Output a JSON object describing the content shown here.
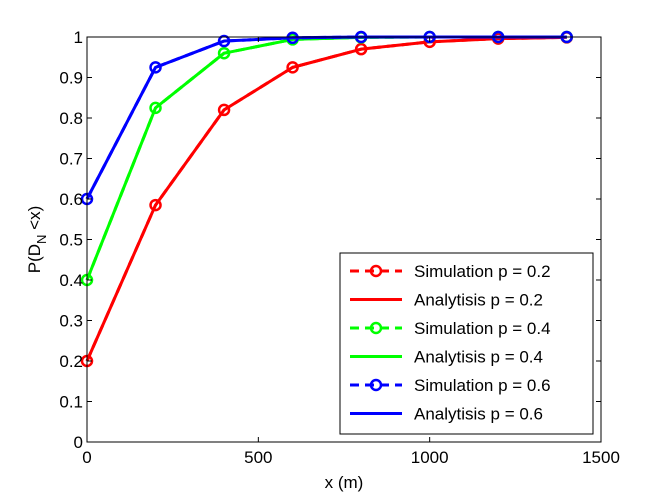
{
  "chart_data": {
    "type": "line",
    "xlabel": "x (m)",
    "ylabel": {
      "main": "P(D",
      "sub": "N",
      "tail": " <x)"
    },
    "xlim": [
      0,
      1500
    ],
    "ylim": [
      0,
      1
    ],
    "x_ticks": [
      0,
      500,
      1000,
      1500
    ],
    "x_tick_labels": [
      "0",
      "500",
      "1000",
      "1500"
    ],
    "y_ticks": [
      0,
      0.1,
      0.2,
      0.3,
      0.4,
      0.5,
      0.6,
      0.7,
      0.8,
      0.9,
      1
    ],
    "y_tick_labels": [
      "0",
      "0.1",
      "0.2",
      "0.3",
      "0.4",
      "0.5",
      "0.6",
      "0.7",
      "0.8",
      "0.9",
      "1"
    ],
    "grid": false,
    "legend_position": "bottom-right",
    "x": [
      0,
      200,
      400,
      600,
      800,
      1000,
      1200,
      1400
    ],
    "series": [
      {
        "name": "Simulation p = 0.2",
        "kind": "simulation",
        "color": "#ff0000",
        "values": [
          0.2,
          0.585,
          0.82,
          0.925,
          0.97,
          0.988,
          0.996,
          0.999
        ]
      },
      {
        "name": "Analytisis p = 0.2",
        "kind": "analysis",
        "color": "#ff0000",
        "values": [
          0.2,
          0.585,
          0.82,
          0.925,
          0.97,
          0.988,
          0.996,
          0.999
        ]
      },
      {
        "name": "Simulation p = 0.4",
        "kind": "simulation",
        "color": "#00ff00",
        "values": [
          0.4,
          0.825,
          0.96,
          0.994,
          0.999,
          1.0,
          1.0,
          1.0
        ]
      },
      {
        "name": "Analytisis p = 0.4",
        "kind": "analysis",
        "color": "#00ff00",
        "values": [
          0.4,
          0.825,
          0.96,
          0.994,
          0.999,
          1.0,
          1.0,
          1.0
        ]
      },
      {
        "name": "Simulation p = 0.6",
        "kind": "simulation",
        "color": "#0000ff",
        "values": [
          0.6,
          0.925,
          0.99,
          0.998,
          1.0,
          1.0,
          1.0,
          1.0
        ]
      },
      {
        "name": "Analytisis p = 0.6",
        "kind": "analysis",
        "color": "#0000ff",
        "values": [
          0.6,
          0.925,
          0.99,
          0.998,
          1.0,
          1.0,
          1.0,
          1.0
        ]
      }
    ]
  }
}
